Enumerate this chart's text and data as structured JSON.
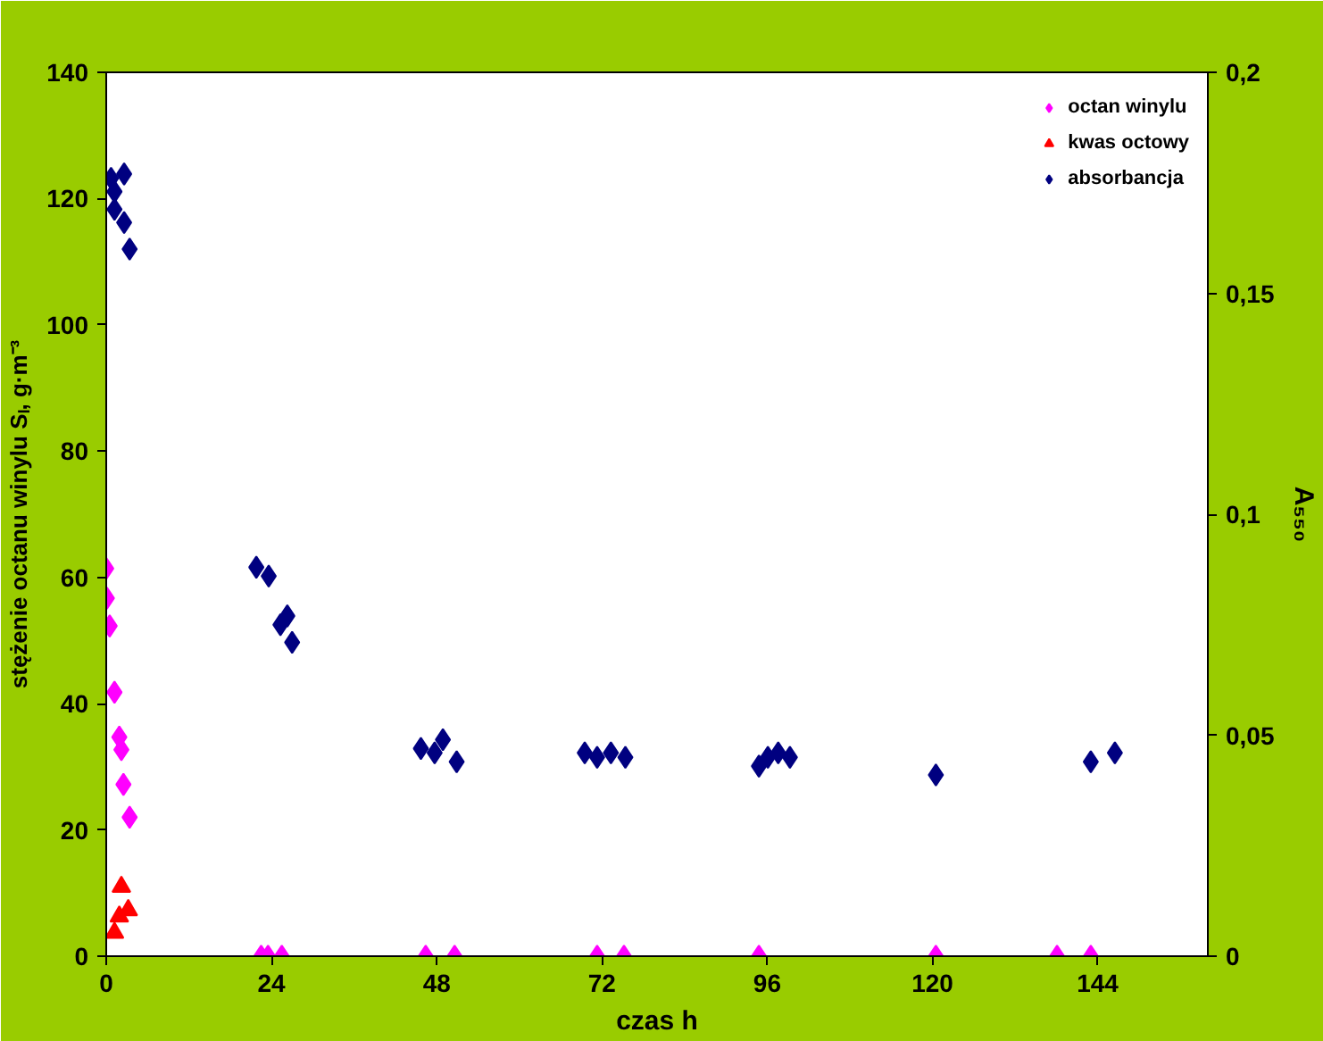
{
  "chart_data": {
    "type": "scatter",
    "xlabel": "czas h",
    "ylabel": "stężenie octanu winylu Sₗ, g·m⁻³",
    "y2label": "A₅₅₀",
    "xlim": [
      0,
      160
    ],
    "xticks": [
      0,
      24,
      48,
      72,
      96,
      120,
      144
    ],
    "ylim": [
      0,
      140
    ],
    "yticks": [
      0,
      20,
      40,
      60,
      80,
      100,
      120,
      140
    ],
    "y2lim": [
      0,
      0.2
    ],
    "y2ticks": [
      {
        "value": 0,
        "label": "0"
      },
      {
        "value": 0.05,
        "label": "0,05"
      },
      {
        "value": 0.1,
        "label": "0,1"
      },
      {
        "value": 0.15,
        "label": "0,15"
      },
      {
        "value": 0.2,
        "label": "0,2"
      }
    ],
    "grid": false,
    "legend": "top right",
    "series": [
      {
        "name": "octan winylu",
        "color": "#ff00ff",
        "marker": "diamond",
        "x": [
          0,
          0.1,
          0.5,
          1.2,
          1.9,
          2.2,
          2.5,
          3.4,
          22.5,
          23.5,
          25.5,
          46.4,
          50.6,
          71.3,
          75.2,
          94.8,
          120.5,
          138.1,
          143
        ],
        "values": [
          61.4,
          56.7,
          52.3,
          41.8,
          34.7,
          32.7,
          27.2,
          22.0,
          0,
          0,
          0,
          0,
          0,
          0,
          0,
          0,
          0,
          0,
          0
        ]
      },
      {
        "name": "kwas octowy",
        "color": "#ff0000",
        "marker": "triangle",
        "x": [
          1.2,
          1.9,
          2.2,
          3.2
        ],
        "values": [
          3.7,
          6.3,
          11.0,
          7.3
        ]
      },
      {
        "name": "absorbancja",
        "color": "#000080",
        "marker": "diamond",
        "axis": "y2",
        "x": [
          0.7,
          1.2,
          1.2,
          2.6,
          2.6,
          3.4,
          21.8,
          23.6,
          25.3,
          26.3,
          27.0,
          45.7,
          47.7,
          48.9,
          50.9,
          69.5,
          71.3,
          73.3,
          75.4,
          94.8,
          96.1,
          97.6,
          99.3,
          120.5,
          143,
          146.5
        ],
        "values": [
          0.176,
          0.173,
          0.169,
          0.177,
          0.166,
          0.16,
          0.088,
          0.086,
          0.075,
          0.077,
          0.071,
          0.047,
          0.046,
          0.049,
          0.044,
          0.046,
          0.045,
          0.046,
          0.045,
          0.043,
          0.045,
          0.046,
          0.045,
          0.041,
          0.044,
          0.046
        ]
      }
    ]
  }
}
